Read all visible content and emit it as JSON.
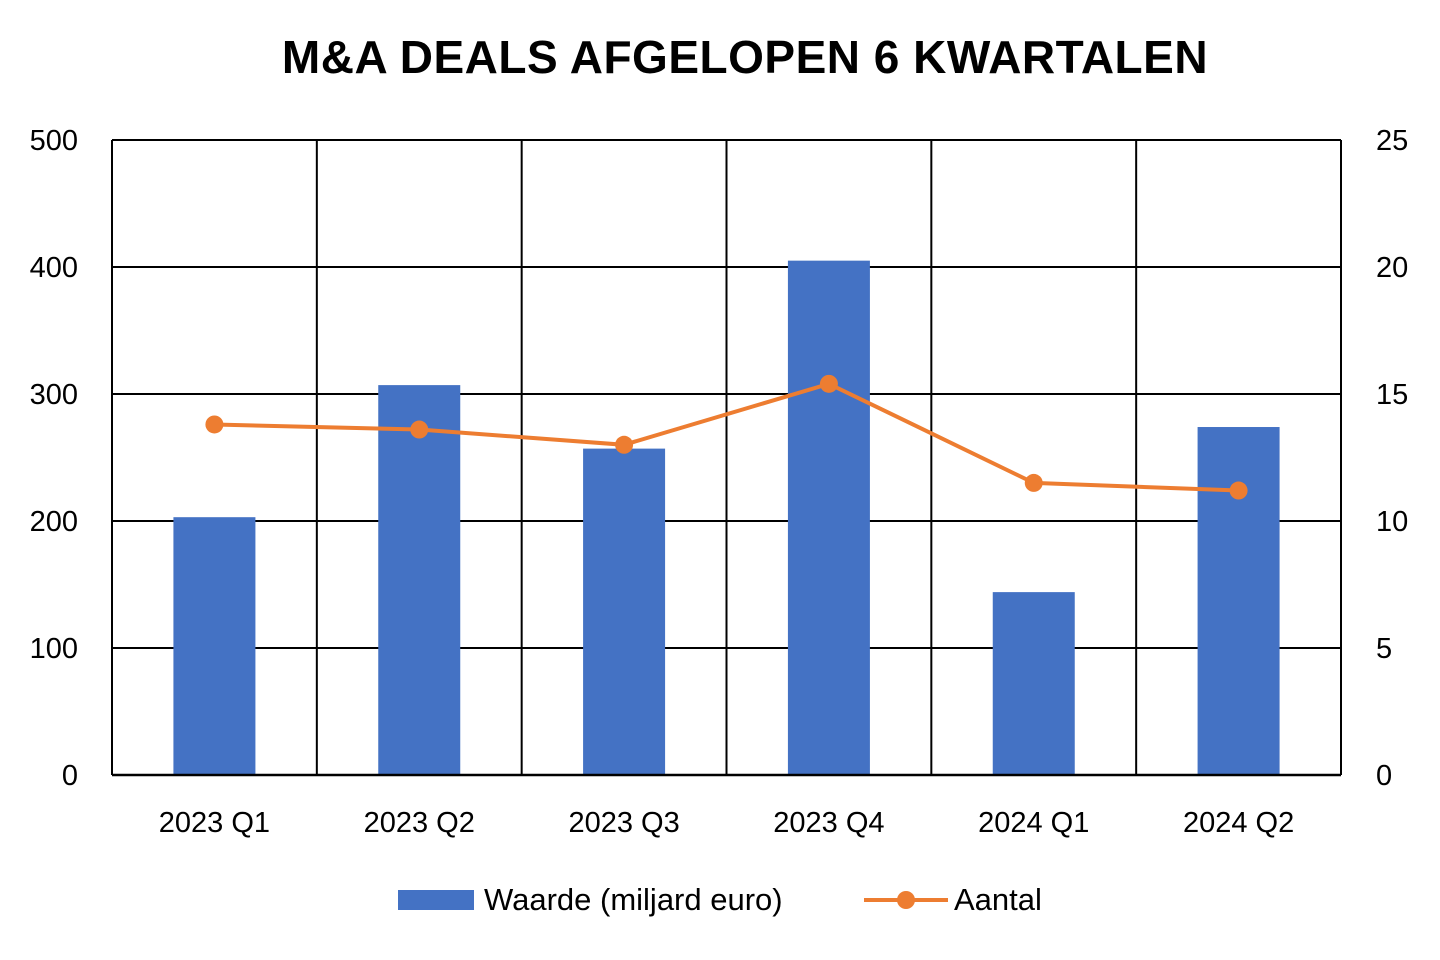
{
  "chart_data": {
    "type": "bar+line",
    "title": "M&A DEALS AFGELOPEN 6 KWARTALEN",
    "categories": [
      "2023 Q1",
      "2023 Q2",
      "2023 Q3",
      "2023 Q4",
      "2024 Q1",
      "2024 Q2"
    ],
    "series": [
      {
        "name": "Waarde (miljard euro)",
        "type": "bar",
        "axis": "left",
        "color": "#4472C4",
        "values": [
          203,
          307,
          257,
          405,
          144,
          274
        ]
      },
      {
        "name": "Aantal",
        "type": "line",
        "axis": "right",
        "color": "#ED7D31",
        "values": [
          13.8,
          13.6,
          13.0,
          15.4,
          11.5,
          11.2
        ]
      }
    ],
    "y_left": {
      "min": 0,
      "max": 500,
      "ticks": [
        "0",
        "100",
        "200",
        "300",
        "400",
        "500"
      ]
    },
    "y_right": {
      "min": 0,
      "max": 25,
      "ticks": [
        "0",
        "5",
        "10",
        "15",
        "20",
        "25"
      ]
    },
    "grid": true,
    "legend_position": "bottom"
  }
}
